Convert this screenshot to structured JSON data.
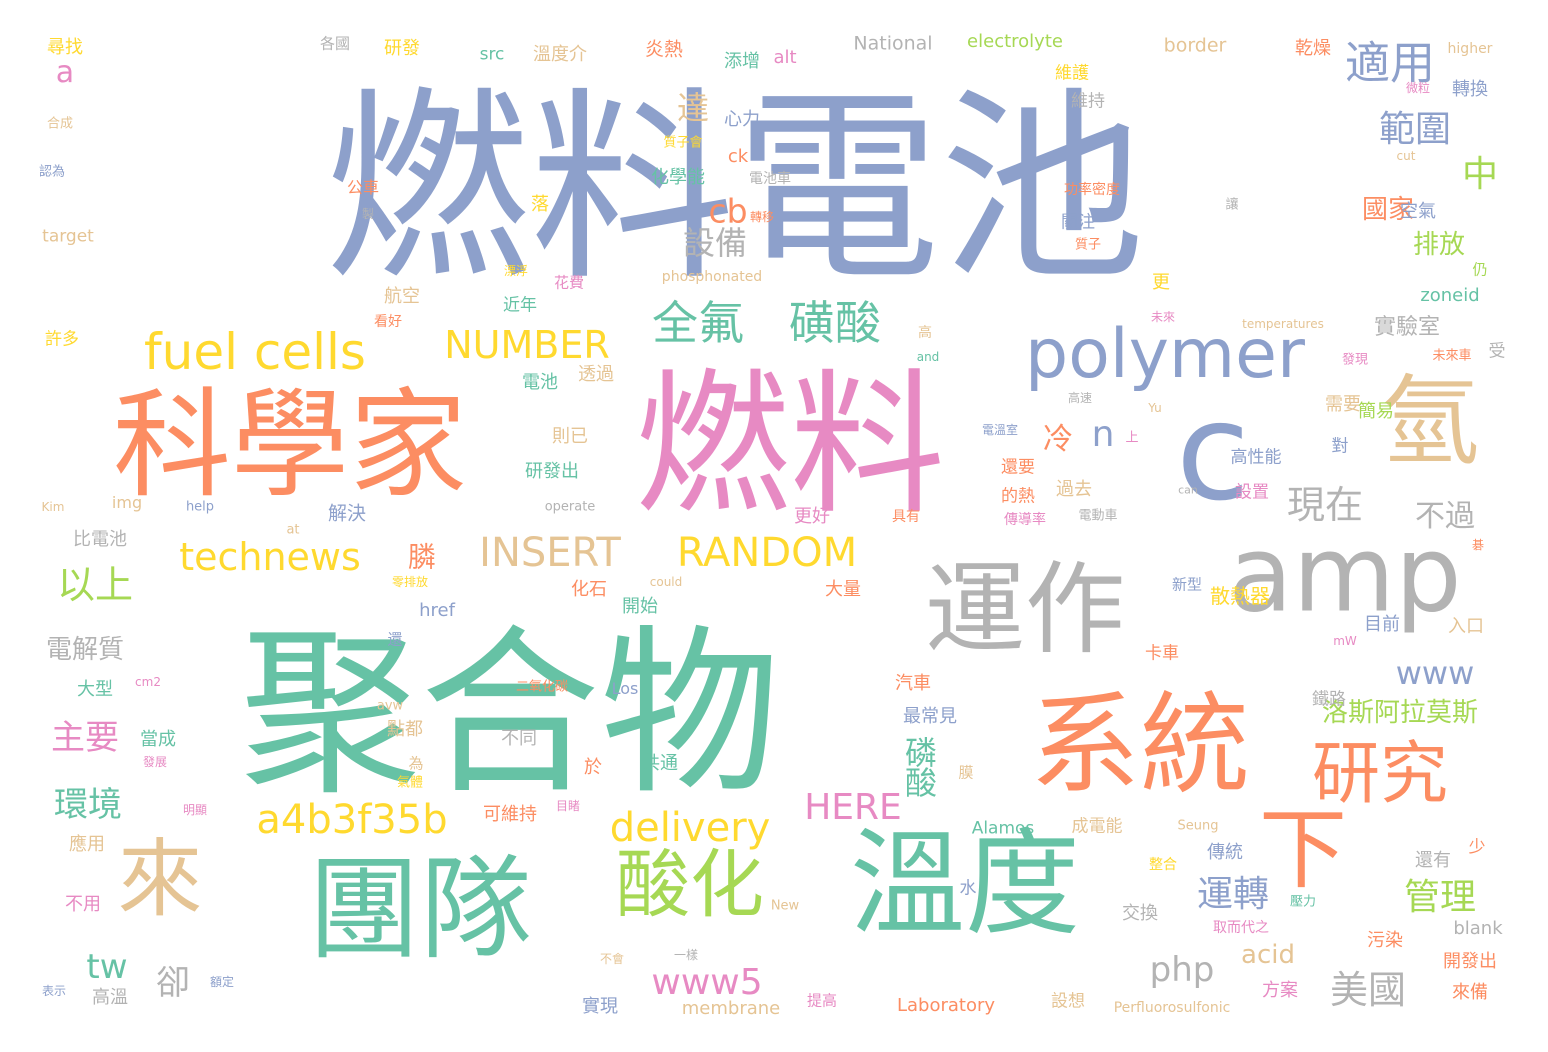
{
  "palette": {
    "blue": "#8DA0CB",
    "orange": "#FC8D62",
    "green": "#66C2A5",
    "pink": "#E78AC3",
    "lime": "#A6D854",
    "yellow": "#FFD92F",
    "tan": "#E5C494",
    "gray": "#B3B3B3"
  },
  "words": [
    {
      "text": "燃料電池",
      "color": "blue"
    },
    {
      "text": "聚合物",
      "color": "green"
    },
    {
      "text": "燃料",
      "color": "pink"
    },
    {
      "text": "科學家",
      "color": "orange"
    },
    {
      "text": "團隊",
      "color": "green"
    },
    {
      "text": "溫度",
      "color": "green"
    },
    {
      "text": "系統",
      "color": "orange"
    },
    {
      "text": "運作",
      "color": "gray"
    },
    {
      "text": "amp",
      "color": "gray"
    },
    {
      "text": "c",
      "color": "blue"
    },
    {
      "text": "氫",
      "color": "tan"
    },
    {
      "text": "來",
      "color": "tan"
    },
    {
      "text": "下",
      "color": "orange"
    },
    {
      "text": "polymer",
      "color": "blue"
    },
    {
      "text": "酸化",
      "color": "lime"
    },
    {
      "text": "研究",
      "color": "orange"
    },
    {
      "text": "fuel cells",
      "color": "yellow"
    },
    {
      "text": "全氟",
      "color": "green"
    },
    {
      "text": "磺酸",
      "color": "green"
    },
    {
      "text": "適用",
      "color": "blue"
    },
    {
      "text": "INSERT",
      "color": "tan"
    },
    {
      "text": "RANDOM",
      "color": "yellow"
    },
    {
      "text": "technews",
      "color": "yellow"
    },
    {
      "text": "a4b3f35b",
      "color": "yellow"
    },
    {
      "text": "delivery",
      "color": "yellow"
    },
    {
      "text": "NUMBER",
      "color": "yellow"
    },
    {
      "text": "HERE",
      "color": "pink"
    },
    {
      "text": "現在",
      "color": "gray"
    },
    {
      "text": "範圍",
      "color": "blue"
    },
    {
      "text": "運轉",
      "color": "blue"
    },
    {
      "text": "管理",
      "color": "lime"
    },
    {
      "text": "美國",
      "color": "gray"
    },
    {
      "text": "php",
      "color": "gray"
    },
    {
      "text": "www5",
      "color": "pink"
    },
    {
      "text": "www",
      "color": "blue"
    },
    {
      "text": "洛斯阿拉莫斯",
      "color": "lime"
    },
    {
      "text": "以上",
      "color": "lime"
    },
    {
      "text": "主要",
      "color": "pink"
    },
    {
      "text": "環境",
      "color": "green"
    },
    {
      "text": "tw",
      "color": "green"
    },
    {
      "text": "設備",
      "color": "gray"
    },
    {
      "text": "cb",
      "color": "orange"
    },
    {
      "text": "不過",
      "color": "gray"
    },
    {
      "text": "中",
      "color": "lime"
    },
    {
      "text": "國家",
      "color": "orange"
    },
    {
      "text": "排放",
      "color": "lime"
    },
    {
      "text": "實驗室",
      "color": "gray"
    },
    {
      "text": "n",
      "color": "blue"
    },
    {
      "text": "冷",
      "color": "orange"
    },
    {
      "text": "達",
      "color": "tan"
    },
    {
      "text": "電解質",
      "color": "gray"
    },
    {
      "text": "卻",
      "color": "gray"
    },
    {
      "text": "acid",
      "color": "tan"
    },
    {
      "text": "a",
      "color": "pink"
    },
    {
      "text": "尋找",
      "color": "yellow"
    },
    {
      "text": "各國",
      "color": "gray"
    },
    {
      "text": "研發",
      "color": "yellow"
    },
    {
      "text": "src",
      "color": "green"
    },
    {
      "text": "溫度介",
      "color": "tan"
    },
    {
      "text": "炎熱",
      "color": "orange"
    },
    {
      "text": "添增",
      "color": "green"
    },
    {
      "text": "alt",
      "color": "pink"
    },
    {
      "text": "National",
      "color": "gray"
    },
    {
      "text": "electrolyte",
      "color": "lime"
    },
    {
      "text": "border",
      "color": "tan"
    },
    {
      "text": "乾燥",
      "color": "orange"
    },
    {
      "text": "higher",
      "color": "tan"
    },
    {
      "text": "轉換",
      "color": "blue"
    },
    {
      "text": "維護",
      "color": "yellow"
    },
    {
      "text": "維持",
      "color": "gray"
    },
    {
      "text": "微粒",
      "color": "pink"
    },
    {
      "text": "合成",
      "color": "tan"
    },
    {
      "text": "心力",
      "color": "blue"
    },
    {
      "text": "質子會",
      "color": "yellow"
    },
    {
      "text": "ck",
      "color": "orange"
    },
    {
      "text": "化學能",
      "color": "green"
    },
    {
      "text": "電池車",
      "color": "gray"
    },
    {
      "text": "功率密度",
      "color": "orange"
    },
    {
      "text": "cut",
      "color": "tan"
    },
    {
      "text": "認為",
      "color": "blue"
    },
    {
      "text": "公車",
      "color": "orange"
    },
    {
      "text": "落",
      "color": "yellow"
    },
    {
      "text": "轉移",
      "color": "orange"
    },
    {
      "text": "關注",
      "color": "blue"
    },
    {
      "text": "空氣",
      "color": "blue"
    },
    {
      "text": "讓",
      "color": "gray"
    },
    {
      "text": "target",
      "color": "tan"
    },
    {
      "text": "製",
      "color": "gray"
    },
    {
      "text": "質子",
      "color": "orange"
    },
    {
      "text": "漂浮",
      "color": "yellow"
    },
    {
      "text": "phosphonated",
      "color": "tan"
    },
    {
      "text": "花費",
      "color": "pink"
    },
    {
      "text": "仍",
      "color": "lime"
    },
    {
      "text": "航空",
      "color": "tan"
    },
    {
      "text": "近年",
      "color": "green"
    },
    {
      "text": "更",
      "color": "yellow"
    },
    {
      "text": "zoneid",
      "color": "green"
    },
    {
      "text": "許多",
      "color": "yellow"
    },
    {
      "text": "看好",
      "color": "orange"
    },
    {
      "text": "高",
      "color": "tan"
    },
    {
      "text": "未來",
      "color": "pink"
    },
    {
      "text": "temperatures",
      "color": "tan"
    },
    {
      "text": "受",
      "color": "gray"
    },
    {
      "text": "and",
      "color": "green"
    },
    {
      "text": "發現",
      "color": "pink"
    },
    {
      "text": "未來車",
      "color": "orange"
    },
    {
      "text": "電池",
      "color": "green"
    },
    {
      "text": "透過",
      "color": "tan"
    },
    {
      "text": "高速",
      "color": "gray"
    },
    {
      "text": "Yu",
      "color": "tan"
    },
    {
      "text": "需要",
      "color": "tan"
    },
    {
      "text": "簡易",
      "color": "lime"
    },
    {
      "text": "則已",
      "color": "tan"
    },
    {
      "text": "上",
      "color": "pink"
    },
    {
      "text": "電溫室",
      "color": "blue"
    },
    {
      "text": "對",
      "color": "blue"
    },
    {
      "text": "研發出",
      "color": "green"
    },
    {
      "text": "高性能",
      "color": "blue"
    },
    {
      "text": "還要",
      "color": "orange"
    },
    {
      "text": "Kim",
      "color": "tan"
    },
    {
      "text": "img",
      "color": "tan"
    },
    {
      "text": "help",
      "color": "blue"
    },
    {
      "text": "解決",
      "color": "blue"
    },
    {
      "text": "的熱",
      "color": "orange"
    },
    {
      "text": "過去",
      "color": "tan"
    },
    {
      "text": "operate",
      "color": "gray"
    },
    {
      "text": "can",
      "color": "gray"
    },
    {
      "text": "設置",
      "color": "pink"
    },
    {
      "text": "at",
      "color": "tan"
    },
    {
      "text": "更好",
      "color": "pink"
    },
    {
      "text": "具有",
      "color": "orange"
    },
    {
      "text": "傳導率",
      "color": "pink"
    },
    {
      "text": "電動車",
      "color": "gray"
    },
    {
      "text": "比電池",
      "color": "gray"
    },
    {
      "text": "膦",
      "color": "orange"
    },
    {
      "text": "碁",
      "color": "orange"
    },
    {
      "text": "零排放",
      "color": "yellow"
    },
    {
      "text": "could",
      "color": "tan"
    },
    {
      "text": "新型",
      "color": "blue"
    },
    {
      "text": "化石",
      "color": "orange"
    },
    {
      "text": "大量",
      "color": "orange"
    },
    {
      "text": "散熱器",
      "color": "yellow"
    },
    {
      "text": "開始",
      "color": "green"
    },
    {
      "text": "href",
      "color": "blue"
    },
    {
      "text": "目前",
      "color": "blue"
    },
    {
      "text": "入口",
      "color": "tan"
    },
    {
      "text": "還",
      "color": "blue"
    },
    {
      "text": "mW",
      "color": "pink"
    },
    {
      "text": "卡車",
      "color": "orange"
    },
    {
      "text": "大型",
      "color": "green"
    },
    {
      "text": "cm2",
      "color": "pink"
    },
    {
      "text": "二氧化碳",
      "color": "orange"
    },
    {
      "text": "Los",
      "color": "blue"
    },
    {
      "text": "汽車",
      "color": "orange"
    },
    {
      "text": "鐵路",
      "color": "gray"
    },
    {
      "text": "avw",
      "color": "tan"
    },
    {
      "text": "點都",
      "color": "tan"
    },
    {
      "text": "最常見",
      "color": "blue"
    },
    {
      "text": "當成",
      "color": "green"
    },
    {
      "text": "發展",
      "color": "pink"
    },
    {
      "text": "不同",
      "color": "gray"
    },
    {
      "text": "為",
      "color": "tan"
    },
    {
      "text": "磷酸",
      "color": "green"
    },
    {
      "text": "膜",
      "color": "tan"
    },
    {
      "text": "於",
      "color": "orange"
    },
    {
      "text": "共通",
      "color": "green"
    },
    {
      "text": "氣體",
      "color": "yellow"
    },
    {
      "text": "明顯",
      "color": "pink"
    },
    {
      "text": "可維持",
      "color": "orange"
    },
    {
      "text": "目睹",
      "color": "pink"
    },
    {
      "text": "應用",
      "color": "tan"
    },
    {
      "text": "Alamos",
      "color": "green"
    },
    {
      "text": "成電能",
      "color": "tan"
    },
    {
      "text": "Seung",
      "color": "tan"
    },
    {
      "text": "少",
      "color": "orange"
    },
    {
      "text": "傳統",
      "color": "blue"
    },
    {
      "text": "還有",
      "color": "gray"
    },
    {
      "text": "整合",
      "color": "yellow"
    },
    {
      "text": "水",
      "color": "blue"
    },
    {
      "text": "不用",
      "color": "pink"
    },
    {
      "text": "New",
      "color": "tan"
    },
    {
      "text": "交換",
      "color": "gray"
    },
    {
      "text": "取而代之",
      "color": "pink"
    },
    {
      "text": "壓力",
      "color": "green"
    },
    {
      "text": "blank",
      "color": "gray"
    },
    {
      "text": "不會",
      "color": "tan"
    },
    {
      "text": "一樣",
      "color": "gray"
    },
    {
      "text": "污染",
      "color": "orange"
    },
    {
      "text": "開發出",
      "color": "orange"
    },
    {
      "text": "表示",
      "color": "blue"
    },
    {
      "text": "額定",
      "color": "blue"
    },
    {
      "text": "高溫",
      "color": "gray"
    },
    {
      "text": "實現",
      "color": "blue"
    },
    {
      "text": "membrane",
      "color": "tan"
    },
    {
      "text": "提高",
      "color": "pink"
    },
    {
      "text": "Laboratory",
      "color": "orange"
    },
    {
      "text": "設想",
      "color": "tan"
    },
    {
      "text": "Perfluorosulfonic",
      "color": "tan"
    },
    {
      "text": "方案",
      "color": "pink"
    },
    {
      "text": "來備",
      "color": "orange"
    }
  ]
}
